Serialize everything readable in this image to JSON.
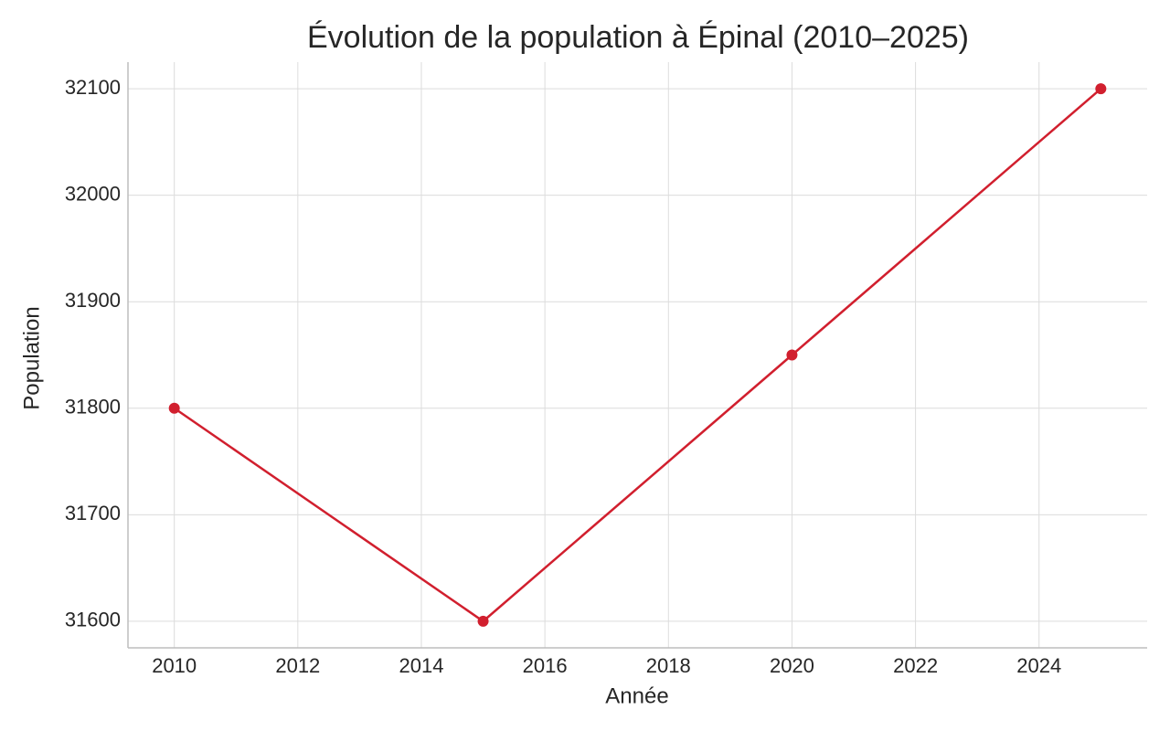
{
  "chart_data": {
    "type": "line",
    "title": "Évolution de la population à Épinal (2010–2025)",
    "x_label": "Année",
    "y_label": "Population",
    "x": [
      2010,
      2015,
      2020,
      2025
    ],
    "series": [
      {
        "name": "Population",
        "color": "#d11f2e",
        "values": [
          31800,
          31600,
          31850,
          32100
        ]
      }
    ],
    "xlim": [
      2009.25,
      2025.75
    ],
    "xticks": [
      2010,
      2012,
      2014,
      2016,
      2018,
      2020,
      2022,
      2024
    ],
    "ylim": [
      31575,
      32125
    ],
    "yticks": [
      31600,
      31700,
      31800,
      31900,
      32000,
      32100
    ],
    "grid": true
  }
}
